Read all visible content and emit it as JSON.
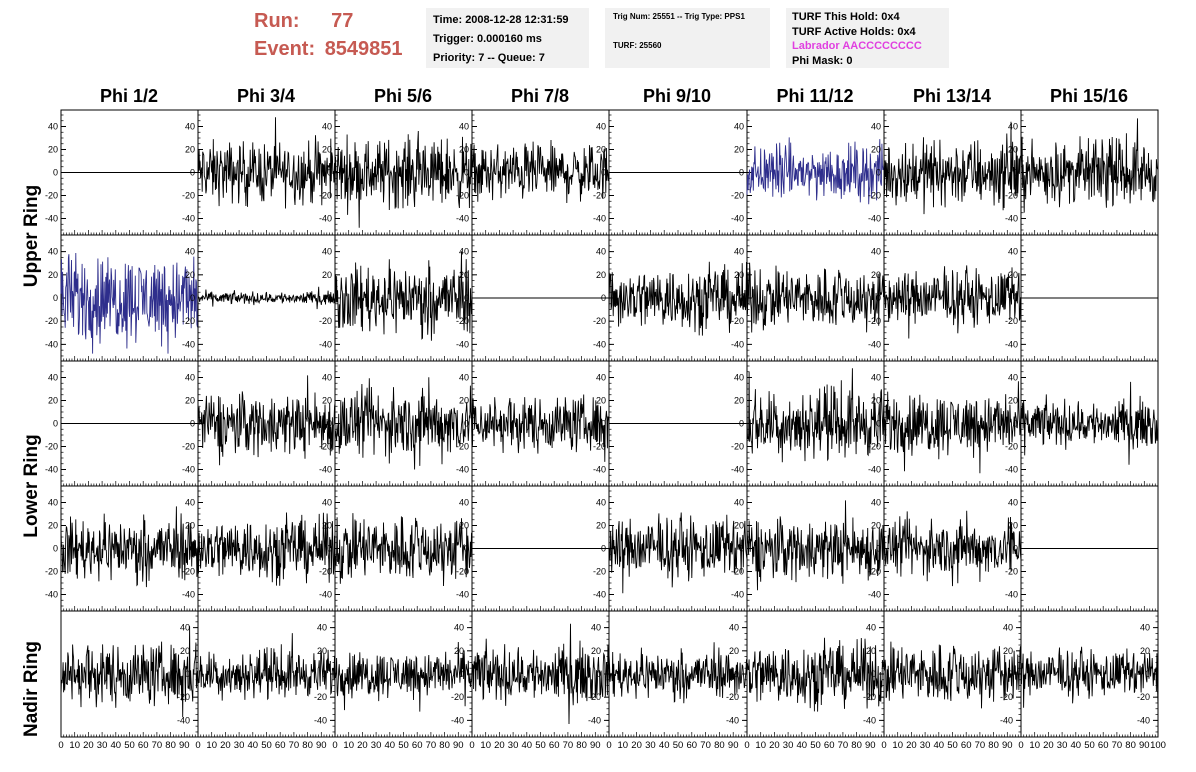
{
  "header": {
    "run_label": "Run:",
    "run_value": "77",
    "event_label": "Event:",
    "event_value": "8549851"
  },
  "info_time": {
    "time": "Time: 2008-12-28 12:31:59",
    "trigger": "Trigger: 0.000160 ms",
    "priority": "Priority: 7 -- Queue: 7"
  },
  "info_trig": {
    "trig": "Trig Num: 25551 -- Trig Type: PPS1",
    "turf": "TURF: 25560"
  },
  "info_turf": {
    "hold": "TURF This Hold: 0x4",
    "active": "TURF Active Holds: 0x4",
    "labrador": "Labrador AACCCCCCCC",
    "phimask": "Phi Mask: 0"
  },
  "colors": {
    "accent_red": "#c65a52",
    "labrador_magenta": "#e040e0",
    "trace_blue": "#2e2e8c",
    "trace_black": "#000000",
    "box_bg": "#f1f1f1"
  },
  "phi_labels": [
    "Phi 1/2",
    "Phi 3/4",
    "Phi 5/6",
    "Phi 7/8",
    "Phi 9/10",
    "Phi 11/12",
    "Phi 13/14",
    "Phi 15/16"
  ],
  "ring_labels": [
    "Upper Ring",
    "Lower Ring",
    "Nadir Ring"
  ],
  "chart_data": {
    "type": "line",
    "xlim": [
      0,
      100
    ],
    "ylim": [
      -50,
      50
    ],
    "y_ticks": [
      -40,
      -20,
      0,
      20,
      40
    ],
    "x_ticks": [
      0,
      10,
      20,
      30,
      40,
      50,
      60,
      70,
      80,
      90,
      100
    ],
    "rows": 5,
    "cols": 8,
    "panel_amplitude": [
      [
        0,
        20,
        22,
        18,
        0,
        18,
        22,
        20
      ],
      [
        28,
        4,
        22,
        0,
        20,
        20,
        18,
        0
      ],
      [
        0,
        20,
        22,
        18,
        0,
        22,
        20,
        15
      ],
      [
        20,
        20,
        22,
        0,
        20,
        20,
        18,
        0
      ],
      [
        20,
        15,
        15,
        18,
        15,
        20,
        20,
        15
      ]
    ],
    "panel_color": [
      [
        "black",
        "black",
        "black",
        "black",
        "black",
        "blue",
        "black",
        "black"
      ],
      [
        "blue",
        "black",
        "black",
        "black",
        "black",
        "black",
        "black",
        "black"
      ],
      [
        "black",
        "black",
        "black",
        "black",
        "black",
        "black",
        "black",
        "black"
      ],
      [
        "black",
        "black",
        "black",
        "black",
        "black",
        "black",
        "black",
        "black"
      ],
      [
        "black",
        "black",
        "black",
        "black",
        "black",
        "black",
        "black",
        "black"
      ]
    ]
  }
}
